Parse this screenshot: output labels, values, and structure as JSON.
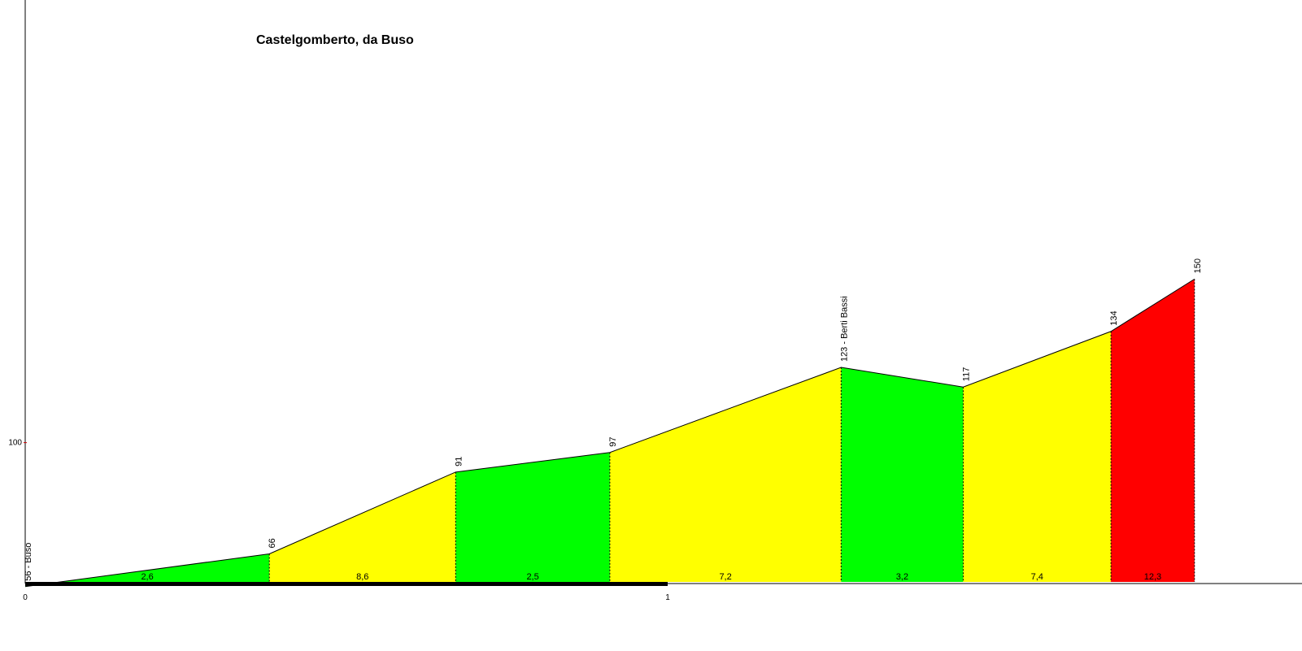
{
  "chart_data": {
    "type": "area",
    "title": "Castelgomberto, da Buso",
    "xlabel": "",
    "ylabel": "",
    "x_unit": "km",
    "y_unit": "m",
    "xlim": [
      0,
      2.0
    ],
    "ylim": [
      45,
      205
    ],
    "x_ticks": [
      {
        "value": 0,
        "label": "0"
      },
      {
        "value": 1,
        "label": "1"
      }
    ],
    "y_ticks": [
      {
        "value": 100,
        "label": "100"
      }
    ],
    "points": [
      {
        "x": 0.0,
        "y": 56,
        "label": "56 - Buso"
      },
      {
        "x": 0.38,
        "y": 66,
        "label": "66"
      },
      {
        "x": 0.67,
        "y": 91,
        "label": "91"
      },
      {
        "x": 0.91,
        "y": 97,
        "label": "97"
      },
      {
        "x": 1.27,
        "y": 123,
        "label": "123 - Berti Bassi"
      },
      {
        "x": 1.46,
        "y": 117,
        "label": "117"
      },
      {
        "x": 1.69,
        "y": 134,
        "label": "134"
      },
      {
        "x": 1.82,
        "y": 150,
        "label": "150"
      }
    ],
    "segments": [
      {
        "gradient": "2,6",
        "color": "#00ff00"
      },
      {
        "gradient": "8,6",
        "color": "#ffff00"
      },
      {
        "gradient": "2,5",
        "color": "#00ff00"
      },
      {
        "gradient": "7,2",
        "color": "#ffff00"
      },
      {
        "gradient": "3,2",
        "color": "#00ff00"
      },
      {
        "gradient": "7,4",
        "color": "#ffff00"
      },
      {
        "gradient": "12,3",
        "color": "#ff0000"
      }
    ],
    "scale_bar": {
      "from": 0,
      "to": 1
    },
    "grid": false,
    "legend": "none"
  }
}
